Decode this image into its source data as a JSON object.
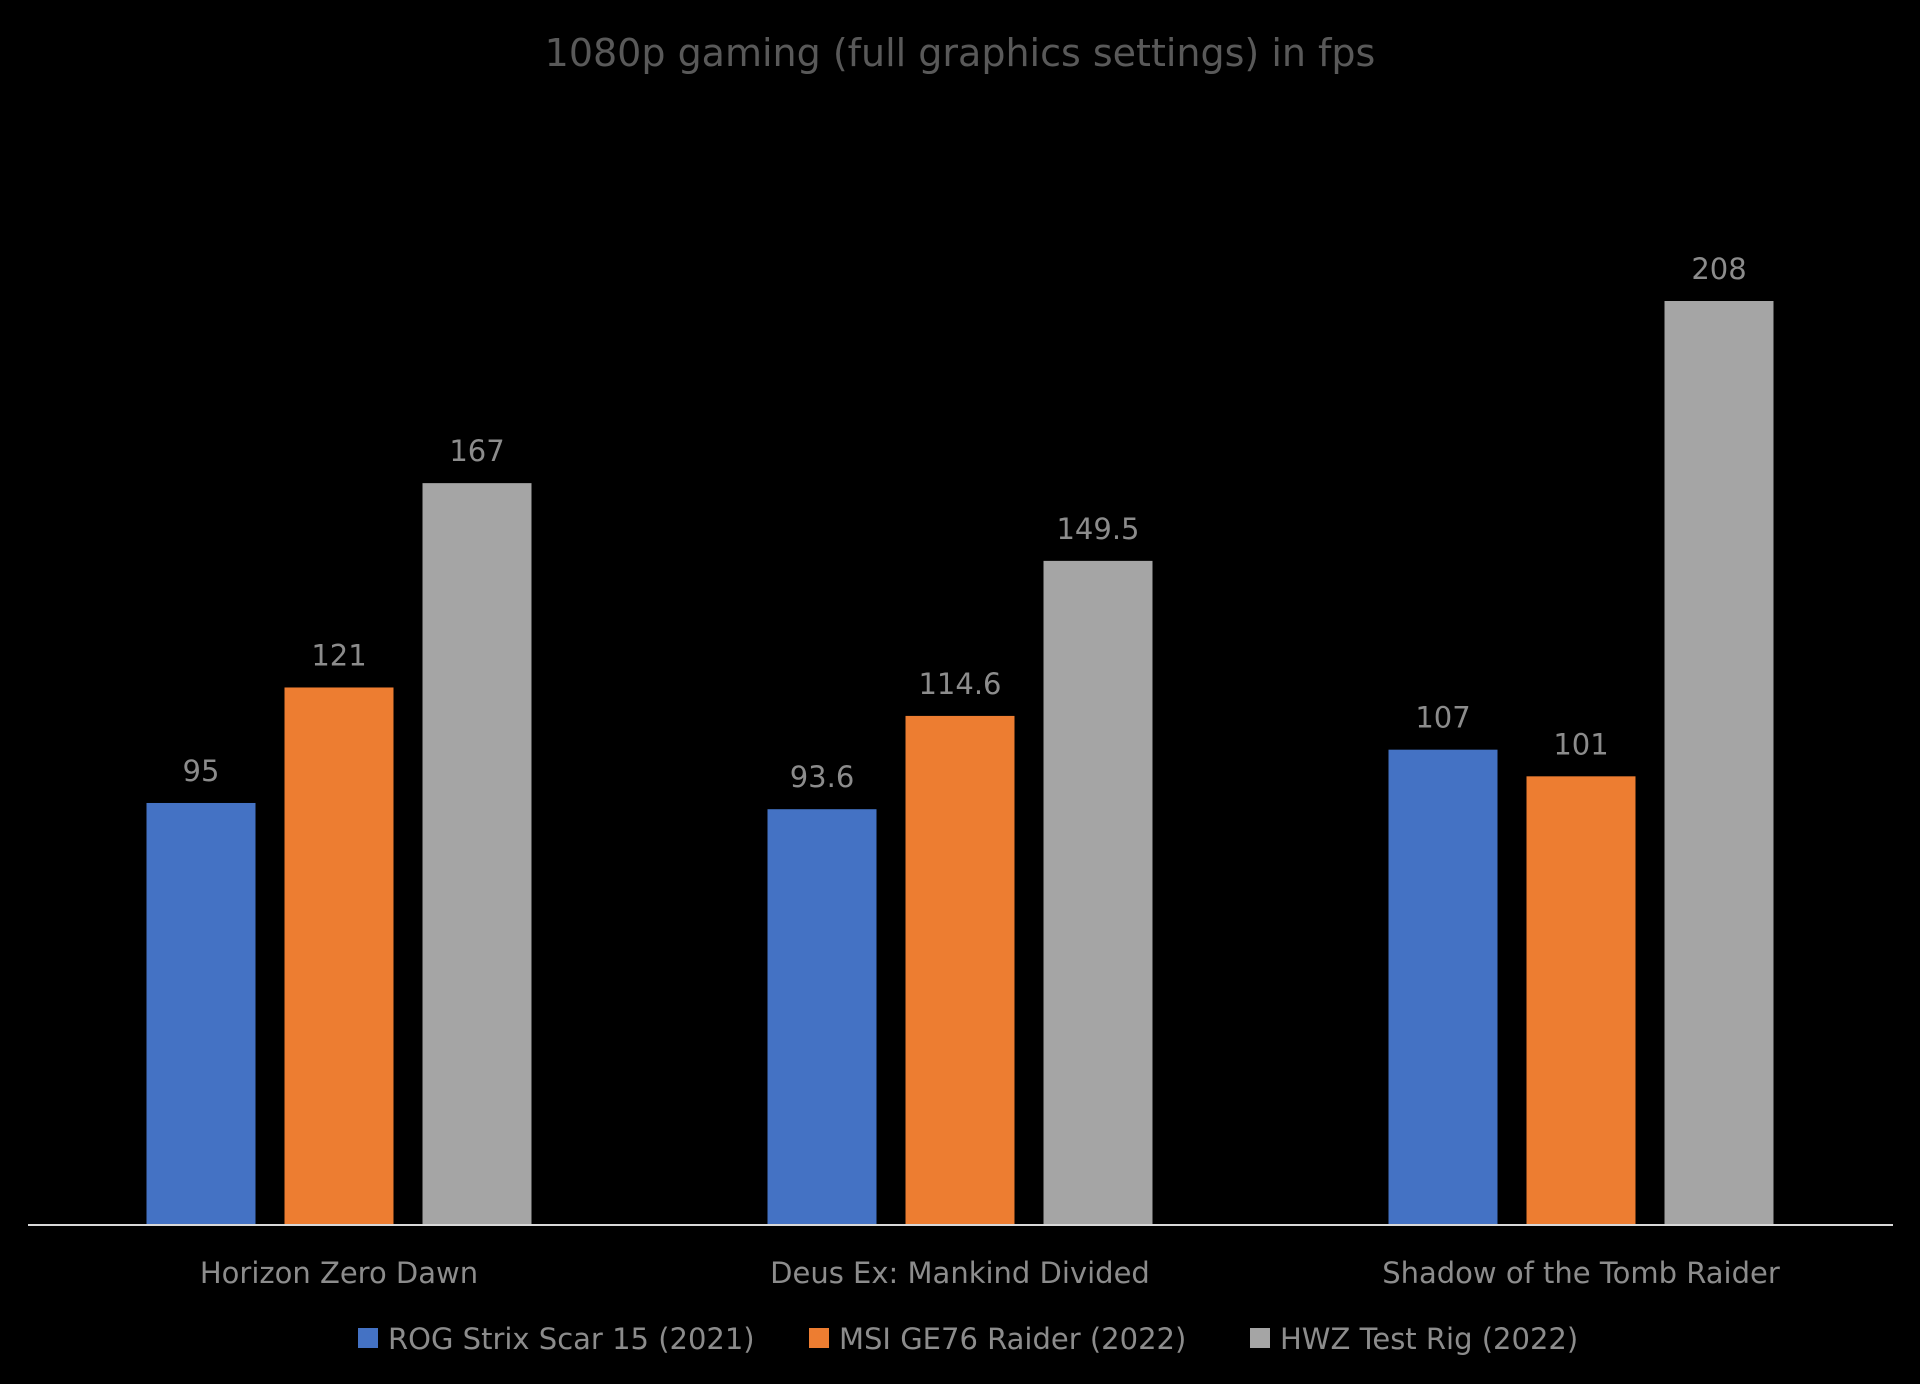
{
  "chart_data": {
    "type": "bar",
    "title": "1080p gaming (full graphics settings) in fps",
    "categories": [
      "Horizon Zero Dawn",
      "Deus Ex: Mankind Divided",
      "Shadow of the Tomb Raider"
    ],
    "series": [
      {
        "name": "ROG Strix Scar 15 (2021)",
        "color": "#4472C4",
        "values": [
          95,
          93.6,
          107
        ],
        "labels": [
          "95",
          "93.6",
          "107"
        ]
      },
      {
        "name": "MSI GE76 Raider (2022)",
        "color": "#ED7D31",
        "values": [
          121,
          114.6,
          101
        ],
        "labels": [
          "121",
          "114.6",
          "101"
        ]
      },
      {
        "name": "HWZ Test Rig (2022)",
        "color": "#A5A5A5",
        "values": [
          167,
          149.5,
          208
        ],
        "labels": [
          "167",
          "149.5",
          "208"
        ]
      }
    ],
    "ylim": [
      0,
      220
    ],
    "grid": false,
    "legend_position": "bottom",
    "background": "#000000",
    "axis_color": "#d9d9d9",
    "text_color": "#8c8c8c",
    "title_color": "#595959"
  }
}
